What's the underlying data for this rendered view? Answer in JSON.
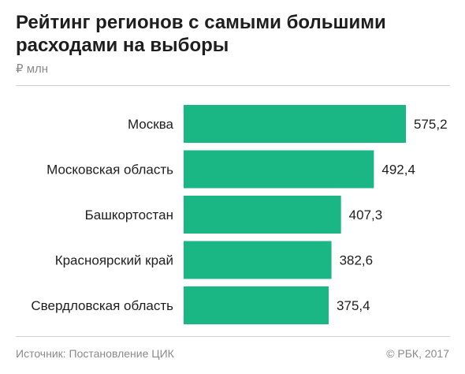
{
  "header": {
    "title": "Рейтинг регионов с самыми большими расходами на выборы",
    "unit": "₽ млн"
  },
  "footer": {
    "source": "Источник: Постановление ЦИК",
    "copyright": "© РБК, 2017"
  },
  "colors": {
    "bar": "#1ab785",
    "text": "#1e1e1e",
    "muted": "#8a8a8a"
  },
  "chart_data": {
    "type": "bar",
    "orientation": "horizontal",
    "categories": [
      "Москва",
      "Московская область",
      "Башкортостан",
      "Красноярский край",
      "Свердловская область"
    ],
    "values": [
      575.2,
      492.4,
      407.3,
      382.6,
      375.4
    ],
    "value_labels": [
      "575,2",
      "492,4",
      "407,3",
      "382,6",
      "375,4"
    ],
    "xlim": [
      0,
      575.2
    ],
    "grid": false,
    "legend": "none"
  }
}
